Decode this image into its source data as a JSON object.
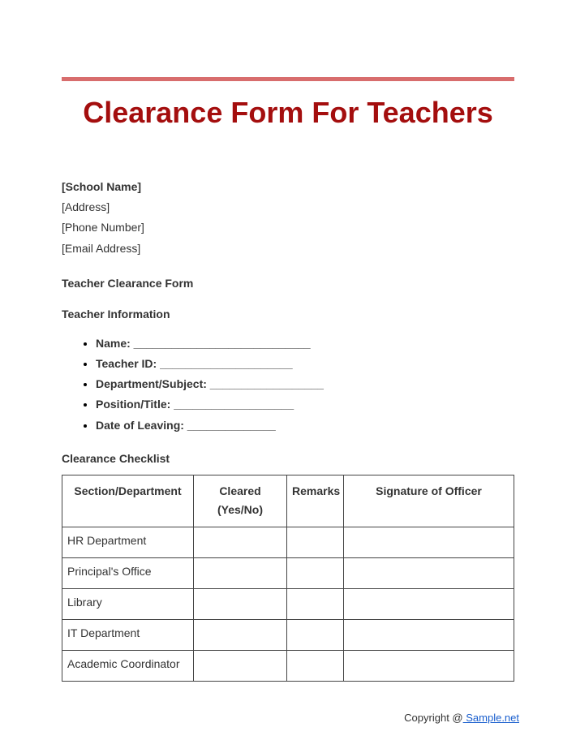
{
  "colors": {
    "title_color": "#a40e0e",
    "rule_color": "#d86d6d",
    "border_color": "#444444",
    "text_color": "#333333",
    "link_color": "#1a5fce",
    "background": "#ffffff"
  },
  "title": "Clearance Form For Teachers",
  "school": {
    "name": "[School Name]",
    "address": "[Address]",
    "phone": "[Phone Number]",
    "email": "[Email Address]"
  },
  "sub_heading": "Teacher Clearance Form",
  "teacher_info_heading": "Teacher Information",
  "teacher_fields": [
    "Name: ____________________________",
    "Teacher ID: _____________________",
    "Department/Subject: __________________",
    "Position/Title: ___________________",
    "Date of Leaving: ______________"
  ],
  "checklist_heading": "Clearance Checklist",
  "table": {
    "columns": [
      "Section/Department",
      "Cleared (Yes/No)",
      "Remarks",
      "Signature of Officer"
    ],
    "rows": [
      [
        "HR Department",
        "",
        "",
        ""
      ],
      [
        "Principal's Office",
        "",
        "",
        ""
      ],
      [
        "Library",
        "",
        "",
        ""
      ],
      [
        "IT Department",
        "",
        "",
        ""
      ],
      [
        "Academic Coordinator",
        "",
        "",
        ""
      ]
    ]
  },
  "footer": {
    "prefix": "Copyright @",
    "link_text": " Sample.net"
  }
}
